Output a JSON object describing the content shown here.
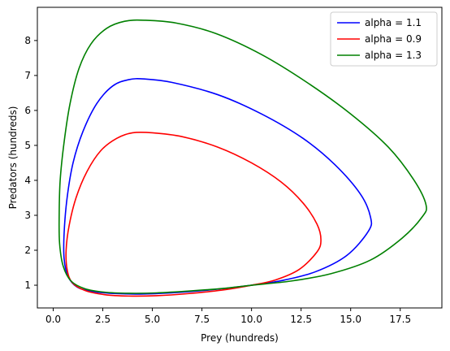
{
  "chart_data": {
    "type": "line",
    "title": "",
    "xlabel": "Prey (hundreds)",
    "ylabel": "Predators (hundreds)",
    "xlim": [
      -0.8,
      19.6
    ],
    "ylim": [
      0.35,
      8.95
    ],
    "xticks": [
      0.0,
      2.5,
      5.0,
      7.5,
      10.0,
      12.5,
      15.0,
      17.5
    ],
    "xtick_labels": [
      "0.0",
      "2.5",
      "5.0",
      "7.5",
      "10.0",
      "12.5",
      "15.0",
      "17.5"
    ],
    "yticks": [
      1,
      2,
      3,
      4,
      5,
      6,
      7,
      8
    ],
    "ytick_labels": [
      "1",
      "2",
      "3",
      "4",
      "5",
      "6",
      "7",
      "8"
    ],
    "grid": false,
    "legend": "top-right",
    "series": [
      {
        "name": "alpha = 1.1",
        "color": "#0000ff",
        "points": [
          [
            10,
            1
          ],
          [
            11.5,
            1.13
          ],
          [
            13.2,
            1.38
          ],
          [
            14.8,
            1.85
          ],
          [
            15.9,
            2.55
          ],
          [
            16.0,
            2.95
          ],
          [
            15.5,
            3.6
          ],
          [
            14.2,
            4.45
          ],
          [
            12.6,
            5.2
          ],
          [
            10.5,
            5.9
          ],
          [
            8.3,
            6.45
          ],
          [
            6.0,
            6.8
          ],
          [
            4.6,
            6.9
          ],
          [
            3.8,
            6.88
          ],
          [
            3.0,
            6.7
          ],
          [
            2.2,
            6.2
          ],
          [
            1.5,
            5.4
          ],
          [
            1.0,
            4.5
          ],
          [
            0.7,
            3.5
          ],
          [
            0.55,
            2.5
          ],
          [
            0.55,
            1.75
          ],
          [
            0.75,
            1.25
          ],
          [
            1.2,
            0.95
          ],
          [
            2.0,
            0.82
          ],
          [
            3.2,
            0.76
          ],
          [
            4.6,
            0.75
          ],
          [
            6.2,
            0.79
          ],
          [
            8.0,
            0.87
          ],
          [
            10,
            1
          ]
        ]
      },
      {
        "name": "alpha = 0.9",
        "color": "#ff0000",
        "points": [
          [
            10,
            1
          ],
          [
            11.2,
            1.15
          ],
          [
            12.4,
            1.45
          ],
          [
            13.3,
            1.95
          ],
          [
            13.5,
            2.3
          ],
          [
            13.3,
            2.75
          ],
          [
            12.6,
            3.35
          ],
          [
            11.5,
            3.95
          ],
          [
            10.0,
            4.5
          ],
          [
            8.3,
            4.95
          ],
          [
            6.5,
            5.25
          ],
          [
            5.0,
            5.36
          ],
          [
            4.0,
            5.36
          ],
          [
            3.2,
            5.2
          ],
          [
            2.4,
            4.85
          ],
          [
            1.7,
            4.25
          ],
          [
            1.15,
            3.5
          ],
          [
            0.8,
            2.7
          ],
          [
            0.65,
            2.0
          ],
          [
            0.7,
            1.45
          ],
          [
            0.95,
            1.08
          ],
          [
            1.6,
            0.85
          ],
          [
            2.6,
            0.73
          ],
          [
            3.8,
            0.69
          ],
          [
            5.2,
            0.7
          ],
          [
            6.8,
            0.76
          ],
          [
            8.5,
            0.86
          ],
          [
            10,
            1
          ]
        ]
      },
      {
        "name": "alpha = 1.3",
        "color": "#008000",
        "points": [
          [
            10,
            1
          ],
          [
            12.0,
            1.12
          ],
          [
            14.0,
            1.33
          ],
          [
            16.0,
            1.72
          ],
          [
            17.6,
            2.35
          ],
          [
            18.6,
            2.95
          ],
          [
            18.8,
            3.3
          ],
          [
            18.2,
            4.0
          ],
          [
            16.9,
            4.95
          ],
          [
            15.0,
            5.9
          ],
          [
            12.8,
            6.8
          ],
          [
            10.5,
            7.6
          ],
          [
            8.2,
            8.2
          ],
          [
            6.2,
            8.5
          ],
          [
            4.6,
            8.58
          ],
          [
            3.6,
            8.55
          ],
          [
            2.7,
            8.35
          ],
          [
            1.9,
            7.9
          ],
          [
            1.3,
            7.2
          ],
          [
            0.85,
            6.2
          ],
          [
            0.55,
            5.1
          ],
          [
            0.35,
            4.0
          ],
          [
            0.3,
            3.0
          ],
          [
            0.32,
            2.2
          ],
          [
            0.5,
            1.55
          ],
          [
            0.9,
            1.12
          ],
          [
            1.6,
            0.9
          ],
          [
            2.6,
            0.8
          ],
          [
            3.8,
            0.77
          ],
          [
            5.2,
            0.78
          ],
          [
            7.0,
            0.84
          ],
          [
            8.6,
            0.91
          ],
          [
            10,
            1
          ]
        ]
      }
    ]
  }
}
